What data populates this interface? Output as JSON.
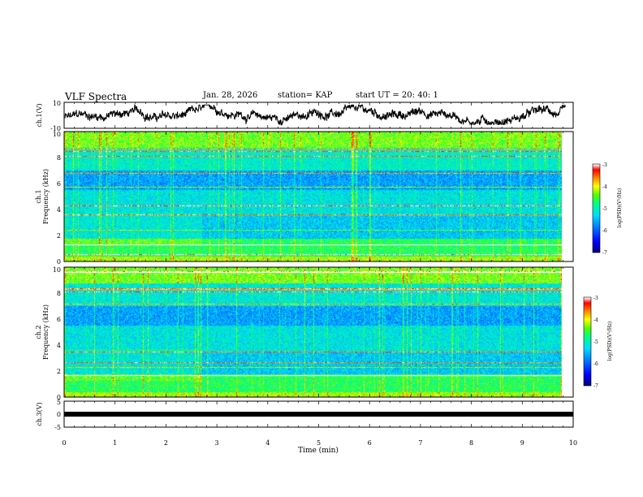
{
  "header": {
    "title": "VLF Spectra",
    "date": "Jan. 28, 2026",
    "station": "station= KAP",
    "start_ut": "start  UT =   20: 40: 1"
  },
  "colors": {
    "trace": "#000000",
    "colormap": [
      "#000080",
      "#0000ff",
      "#0080ff",
      "#00e0ff",
      "#00ff80",
      "#40ff00",
      "#ffff00",
      "#ff8000",
      "#ff0000",
      "#ffffff"
    ]
  },
  "chart_data": [
    {
      "type": "line",
      "name": "ch1 waveform",
      "ylabel": "ch.1(V)",
      "ylim": [
        -10,
        10
      ],
      "ytick_labels": [
        "10",
        "-10"
      ],
      "xlim": [
        0,
        10
      ],
      "trace_range_min": [
        0,
        9.85
      ],
      "series": [
        {
          "name": "ch.1(V)",
          "approx_value_range": [
            -7,
            8
          ]
        }
      ]
    },
    {
      "type": "heatmap",
      "name": "ch1 spectrogram",
      "ylabel_lines": [
        "ch.1",
        "Frequency (kHz)"
      ],
      "ylim": [
        0,
        10
      ],
      "ytick_labels": [
        "0",
        "2",
        "4",
        "6",
        "8",
        "10"
      ],
      "xlim": [
        0,
        10
      ],
      "data_extent_min": [
        0,
        9.85
      ],
      "colorbar": {
        "label": "log(PSD)(V²/Hz)",
        "range": [
          -7,
          -3
        ],
        "tick_labels": [
          "-3",
          "-4",
          "-5",
          "-6",
          "-7"
        ]
      }
    },
    {
      "type": "heatmap",
      "name": "ch2 spectrogram",
      "ylabel_lines": [
        "ch.2",
        "Frequency (kHz)"
      ],
      "ylim": [
        0,
        10
      ],
      "ytick_labels": [
        "0",
        "2",
        "4",
        "6",
        "8",
        "10"
      ],
      "xlim": [
        0,
        10
      ],
      "data_extent_min": [
        0,
        9.85
      ],
      "colorbar": {
        "label": "log(PSD)(V²/Hz)",
        "range": [
          -7,
          -3
        ],
        "tick_labels": [
          "-3",
          "-4",
          "-5",
          "-6",
          "-7"
        ]
      }
    },
    {
      "type": "line",
      "name": "ch3 waveform",
      "ylabel": "ch.3(V)",
      "ylim": [
        -5,
        5
      ],
      "ytick_labels": [
        "5",
        "0",
        "-5"
      ],
      "xlim": [
        0,
        10
      ],
      "series": [
        {
          "name": "ch.3(V)",
          "approx_value_range": [
            -0.3,
            0.3
          ]
        }
      ],
      "xlabel": "Time (min)",
      "xtick_labels": [
        "0",
        "1",
        "2",
        "3",
        "4",
        "5",
        "6",
        "7",
        "8",
        "9",
        "10"
      ]
    }
  ]
}
